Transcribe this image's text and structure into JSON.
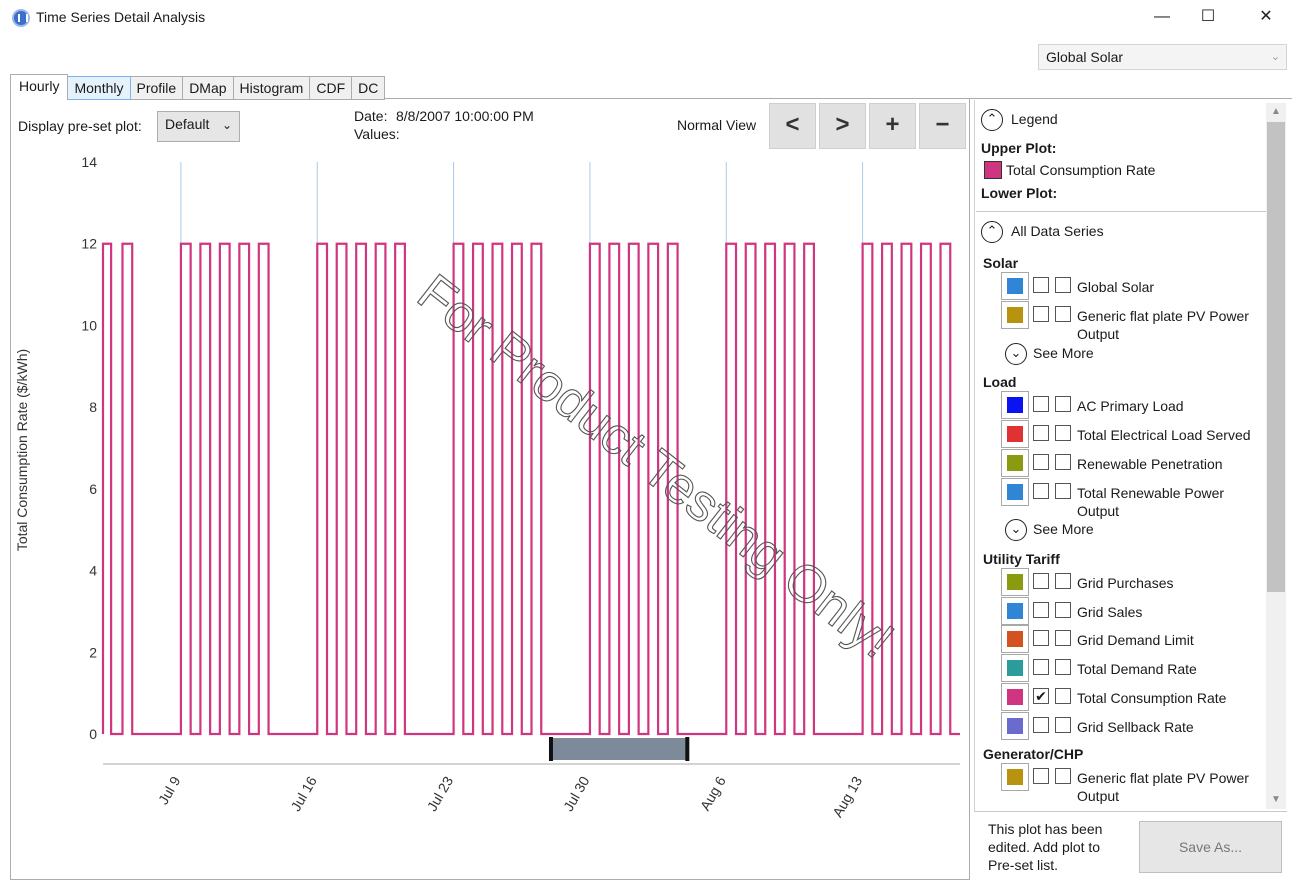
{
  "window": {
    "title": "Time Series Detail Analysis",
    "minimize": "—",
    "maximize": "☐",
    "close": "✕"
  },
  "series_dropdown": {
    "value": "Global Solar"
  },
  "tabs": [
    {
      "label": "Hourly"
    },
    {
      "label": "Monthly"
    },
    {
      "label": "Profile"
    },
    {
      "label": "DMap"
    },
    {
      "label": "Histogram"
    },
    {
      "label": "CDF"
    },
    {
      "label": "DC"
    }
  ],
  "controls": {
    "preset_label": "Display pre-set plot:",
    "preset_value": "Default",
    "date_label": "Date:",
    "date_value": "8/8/2007 10:00:00 PM",
    "values_label": "Values:",
    "view_label": "Normal View",
    "prev": "<",
    "next": ">",
    "zoom_in": "+",
    "zoom_out": "−"
  },
  "watermark": "For Product Testing Only!",
  "chart_data": {
    "type": "line",
    "title": "",
    "ylabel": "Total Consumption Rate ($/kWh)",
    "xlabel": "",
    "ylim": [
      0,
      14
    ],
    "yticks": [
      0,
      2,
      4,
      6,
      8,
      10,
      12,
      14
    ],
    "xlim": [
      "2007-07-05",
      "2007-08-18"
    ],
    "xticks": [
      "Jul 9",
      "Jul 16",
      "Jul 23",
      "Jul 30",
      "Aug 6",
      "Aug 13"
    ],
    "grid_vertical": true,
    "series": [
      {
        "name": "Total Consumption Rate",
        "color": "#d0357f",
        "pattern": "weekday peaks of 12 each day, 0 overnight and on weekends",
        "high_intervals": [
          [
            "2007-07-05",
            "2007-07-05T10:00"
          ],
          [
            "2007-07-06",
            "2007-07-06T12:00"
          ],
          [
            "2007-07-09",
            "2007-07-09T12:00"
          ],
          [
            "2007-07-10",
            "2007-07-10T12:00"
          ],
          [
            "2007-07-11",
            "2007-07-11T12:00"
          ],
          [
            "2007-07-12",
            "2007-07-12T12:00"
          ],
          [
            "2007-07-13",
            "2007-07-13T12:00"
          ],
          [
            "2007-07-16",
            "2007-07-16T12:00"
          ],
          [
            "2007-07-17",
            "2007-07-17T12:00"
          ],
          [
            "2007-07-18",
            "2007-07-18T12:00"
          ],
          [
            "2007-07-19",
            "2007-07-19T12:00"
          ],
          [
            "2007-07-20",
            "2007-07-20T12:00"
          ],
          [
            "2007-07-23",
            "2007-07-23T12:00"
          ],
          [
            "2007-07-24",
            "2007-07-24T12:00"
          ],
          [
            "2007-07-25",
            "2007-07-25T12:00"
          ],
          [
            "2007-07-26",
            "2007-07-26T12:00"
          ],
          [
            "2007-07-27",
            "2007-07-27T12:00"
          ],
          [
            "2007-07-30",
            "2007-07-30T12:00"
          ],
          [
            "2007-07-31",
            "2007-07-31T12:00"
          ],
          [
            "2007-08-01",
            "2007-08-01T12:00"
          ],
          [
            "2007-08-02",
            "2007-08-02T12:00"
          ],
          [
            "2007-08-03",
            "2007-08-03T12:00"
          ],
          [
            "2007-08-06",
            "2007-08-06T12:00"
          ],
          [
            "2007-08-07",
            "2007-08-07T12:00"
          ],
          [
            "2007-08-08",
            "2007-08-08T12:00"
          ],
          [
            "2007-08-09",
            "2007-08-09T12:00"
          ],
          [
            "2007-08-10",
            "2007-08-10T12:00"
          ],
          [
            "2007-08-13",
            "2007-08-13T12:00"
          ],
          [
            "2007-08-14",
            "2007-08-14T12:00"
          ],
          [
            "2007-08-15",
            "2007-08-15T12:00"
          ],
          [
            "2007-08-16",
            "2007-08-16T12:00"
          ],
          [
            "2007-08-17",
            "2007-08-17T12:00"
          ]
        ],
        "high_value": 12,
        "low_value": 0
      }
    ],
    "range_selector": {
      "start": "2007-07-28",
      "end": "2007-08-04"
    }
  },
  "legend": {
    "header": "Legend",
    "upper_plot_label": "Upper Plot:",
    "upper_plot_items": [
      {
        "label": "Total Consumption Rate",
        "color": "#d0357f"
      }
    ],
    "lower_plot_label": "Lower Plot:",
    "all_series_header": "All Data Series",
    "see_more": "See More",
    "groups": [
      {
        "name": "Solar",
        "items": [
          {
            "label": "Global Solar",
            "color": "#2e86d4",
            "checked": false
          },
          {
            "label": "Generic flat plate PV Power Output",
            "color": "#b8930f",
            "checked": false
          }
        ],
        "see_more": true
      },
      {
        "name": "Load",
        "items": [
          {
            "label": "AC Primary Load",
            "color": "#0a14f0",
            "checked": false
          },
          {
            "label": "Total Electrical Load Served",
            "color": "#e03232",
            "checked": false
          },
          {
            "label": "Renewable Penetration",
            "color": "#8a9b10",
            "checked": false
          },
          {
            "label": "Total Renewable Power Output",
            "color": "#2e86d4",
            "checked": false
          }
        ],
        "see_more": true
      },
      {
        "name": "Utility Tariff",
        "items": [
          {
            "label": "Grid Purchases",
            "color": "#8a9b10",
            "checked": false
          },
          {
            "label": "Grid Sales",
            "color": "#2e86d4",
            "checked": false
          },
          {
            "label": "Grid Demand Limit",
            "color": "#d4521e",
            "checked": false
          },
          {
            "label": "Total Demand Rate",
            "color": "#2a9d9a",
            "checked": false
          },
          {
            "label": "Total Consumption Rate",
            "color": "#d0357f",
            "checked": true
          },
          {
            "label": "Grid Sellback Rate",
            "color": "#6b6bcf",
            "checked": false
          }
        ],
        "see_more": false
      },
      {
        "name": "Generator/CHP",
        "items": [
          {
            "label": "Generic flat plate PV Power Output",
            "color": "#b8930f",
            "checked": false
          }
        ],
        "see_more": false
      }
    ]
  },
  "footer": {
    "note": "This plot has been edited. Add plot to Pre-set list.",
    "save_button": "Save As..."
  }
}
